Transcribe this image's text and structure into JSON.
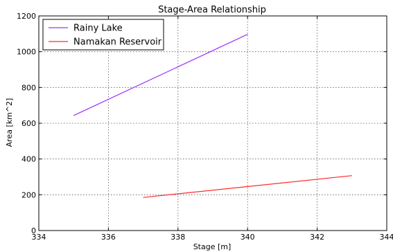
{
  "chart_data": {
    "type": "line",
    "title": "Stage-Area Relationship",
    "xlabel": "Stage [m]",
    "ylabel": "Area [km^2]",
    "xlim": [
      334,
      344
    ],
    "ylim": [
      0,
      1200
    ],
    "xticks": [
      "334",
      "336",
      "338",
      "340",
      "342",
      "344"
    ],
    "yticks": [
      "0",
      "200",
      "400",
      "600",
      "800",
      "1000",
      "1200"
    ],
    "grid": true,
    "legend_position": "top-left",
    "series": [
      {
        "name": "Rainy Lake",
        "color": "#9b30ff",
        "x": [
          335,
          340
        ],
        "y": [
          643,
          1097
        ]
      },
      {
        "name": "Namakan Reservoir",
        "color": "#ff2a2a",
        "x": [
          337,
          343
        ],
        "y": [
          185,
          307
        ]
      }
    ]
  }
}
